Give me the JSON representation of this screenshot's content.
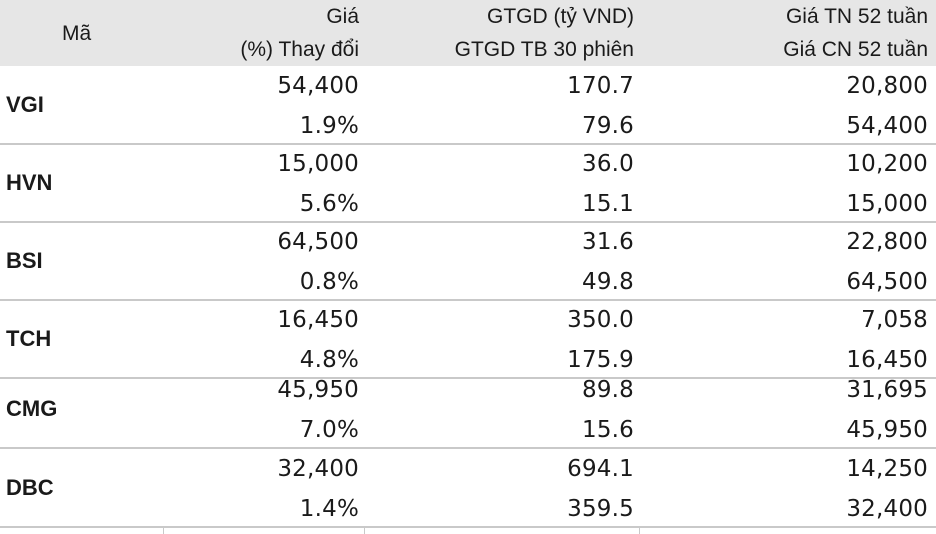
{
  "header": {
    "col_ticker": "Mã",
    "col_price_1": "Giá",
    "col_price_2": "(%) Thay đổi",
    "col_value_1": "GTGD (tỷ VND)",
    "col_value_2": "GTGD TB 30 phiên",
    "col_range_1": "Giá TN 52 tuần",
    "col_range_2": "Giá CN 52 tuần"
  },
  "rows": [
    {
      "ticker": "VGI",
      "price": "54,400",
      "change": "1.9%",
      "value": "170.7",
      "avg_value": "79.6",
      "low_52w": "20,800",
      "high_52w": "54,400"
    },
    {
      "ticker": "HVN",
      "price": "15,000",
      "change": "5.6%",
      "value": "36.0",
      "avg_value": "15.1",
      "low_52w": "10,200",
      "high_52w": "15,000"
    },
    {
      "ticker": "BSI",
      "price": "64,500",
      "change": "0.8%",
      "value": "31.6",
      "avg_value": "49.8",
      "low_52w": "22,800",
      "high_52w": "64,500"
    },
    {
      "ticker": "TCH",
      "price": "16,450",
      "change": "4.8%",
      "value": "350.0",
      "avg_value": "175.9",
      "low_52w": "7,058",
      "high_52w": "16,450"
    },
    {
      "ticker": "CMG",
      "price": "45,950",
      "change": "7.0%",
      "value": "89.8",
      "avg_value": "15.6",
      "low_52w": "31,695",
      "high_52w": "45,950"
    },
    {
      "ticker": "DBC",
      "price": "32,400",
      "change": "1.4%",
      "value": "694.1",
      "avg_value": "359.5",
      "low_52w": "14,250",
      "high_52w": "32,400"
    }
  ]
}
